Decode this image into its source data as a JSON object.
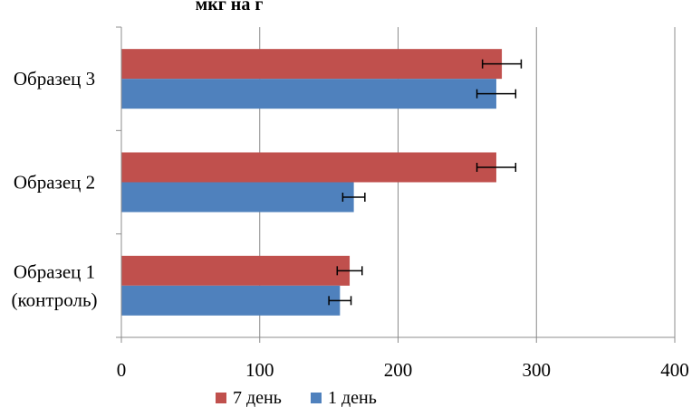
{
  "chart_data": {
    "type": "bar",
    "orientation": "horizontal",
    "title": "мкг на г",
    "categories": [
      [
        "Образец 1",
        "(контроль)"
      ],
      [
        "Образец 2"
      ],
      [
        "Образец 3"
      ]
    ],
    "series": [
      {
        "name": "1 день",
        "color": "#4F81BD",
        "values": [
          158,
          168,
          271
        ],
        "errors": [
          8,
          8,
          14
        ]
      },
      {
        "name": "7 день",
        "color": "#C0504D",
        "values": [
          165,
          271,
          275
        ],
        "errors": [
          9,
          14,
          14
        ]
      }
    ],
    "xlim": [
      0,
      400
    ],
    "xticks": [
      0,
      100,
      200,
      300,
      400
    ],
    "grid": "vertical",
    "legend": "bottom",
    "legend_order": [
      "7 день",
      "1 день"
    ]
  }
}
